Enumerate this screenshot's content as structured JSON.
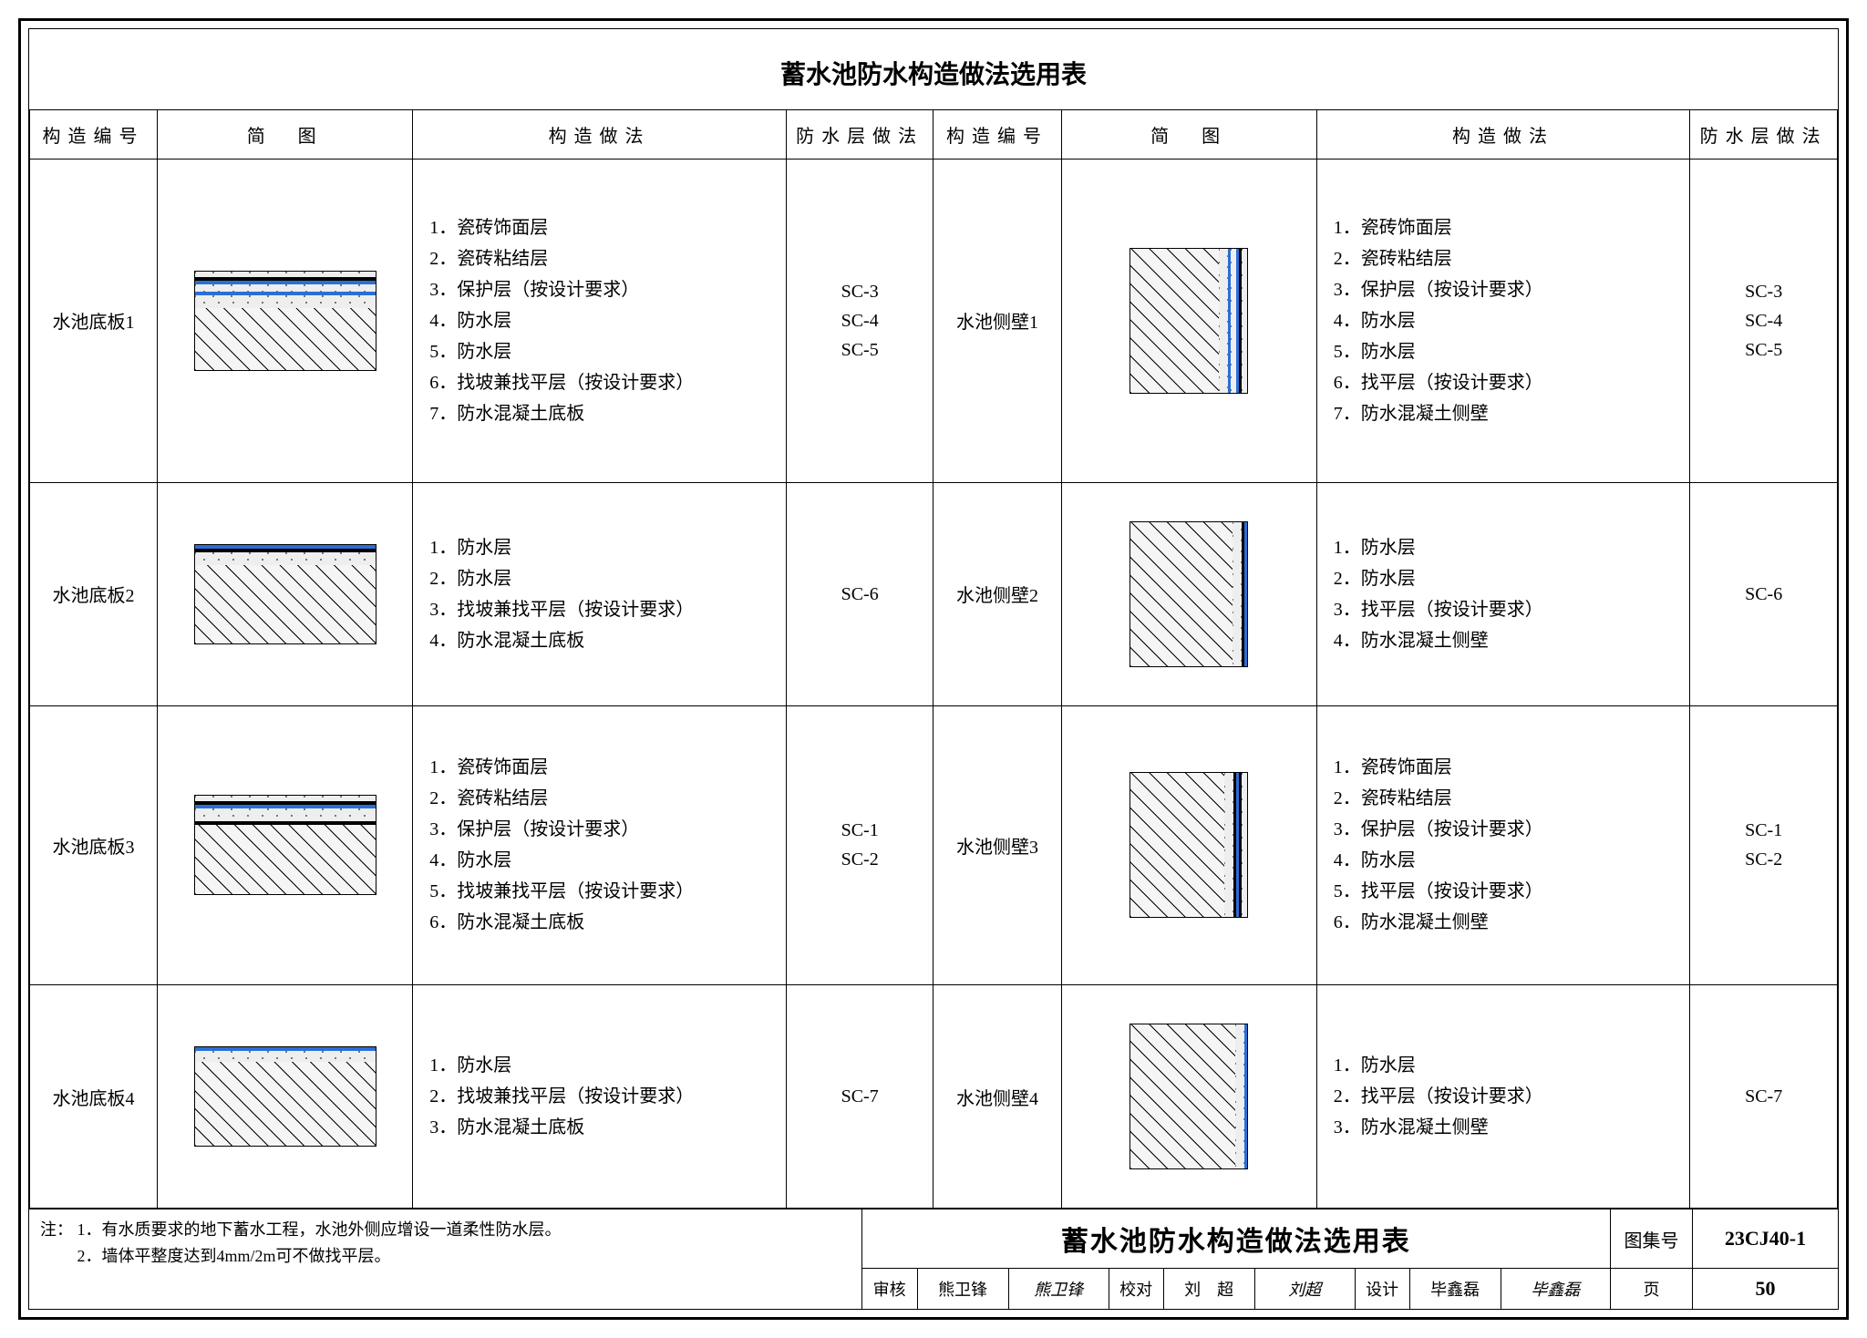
{
  "title": "蓄水池防水构造做法选用表",
  "columns": {
    "id": "构造编号",
    "diagram": "简　图",
    "construction": "构造做法",
    "method": "防水层做法"
  },
  "rows_left": [
    {
      "id": "水池底板1",
      "layers": [
        "1．瓷砖饰面层",
        "2．瓷砖粘结层",
        "3．保护层（按设计要求）",
        "4．防水层",
        "5．防水层",
        "6．找坡兼找平层（按设计要求）",
        "7．防水混凝土底板"
      ],
      "methods": [
        "SC-3",
        "SC-4",
        "SC-5"
      ],
      "diag_type": "h7"
    },
    {
      "id": "水池底板2",
      "layers": [
        "1．防水层",
        "2．防水层",
        "3．找坡兼找平层（按设计要求）",
        "4．防水混凝土底板"
      ],
      "methods": [
        "SC-6"
      ],
      "diag_type": "h4"
    },
    {
      "id": "水池底板3",
      "layers": [
        "1．瓷砖饰面层",
        "2．瓷砖粘结层",
        "3．保护层（按设计要求）",
        "4．防水层",
        "5．找坡兼找平层（按设计要求）",
        "6．防水混凝土底板"
      ],
      "methods": [
        "SC-1",
        "SC-2"
      ],
      "diag_type": "h6"
    },
    {
      "id": "水池底板4",
      "layers": [
        "1．防水层",
        "2．找坡兼找平层（按设计要求）",
        "3．防水混凝土底板"
      ],
      "methods": [
        "SC-7"
      ],
      "diag_type": "h3"
    }
  ],
  "rows_right": [
    {
      "id": "水池侧壁1",
      "layers": [
        "1．瓷砖饰面层",
        "2．瓷砖粘结层",
        "3．保护层（按设计要求）",
        "4．防水层",
        "5．防水层",
        "6．找平层（按设计要求）",
        "7．防水混凝土侧壁"
      ],
      "methods": [
        "SC-3",
        "SC-4",
        "SC-5"
      ],
      "diag_type": "v7"
    },
    {
      "id": "水池侧壁2",
      "layers": [
        "1．防水层",
        "2．防水层",
        "3．找平层（按设计要求）",
        "4．防水混凝土侧壁"
      ],
      "methods": [
        "SC-6"
      ],
      "diag_type": "v4"
    },
    {
      "id": "水池侧壁3",
      "layers": [
        "1．瓷砖饰面层",
        "2．瓷砖粘结层",
        "3．保护层（按设计要求）",
        "4．防水层",
        "5．找平层（按设计要求）",
        "6．防水混凝土侧壁"
      ],
      "methods": [
        "SC-1",
        "SC-2"
      ],
      "diag_type": "v6"
    },
    {
      "id": "水池侧壁4",
      "layers": [
        "1．防水层",
        "2．找平层（按设计要求）",
        "3．防水混凝土侧壁"
      ],
      "methods": [
        "SC-7"
      ],
      "diag_type": "v3"
    }
  ],
  "notes_label": "注：",
  "notes": [
    "1．有水质要求的地下蓄水工程，水池外侧应增设一道柔性防水层。",
    "2．墙体平整度达到4mm/2m可不做找平层。"
  ],
  "titleblock": {
    "title": "蓄水池防水构造做法选用表",
    "album_label": "图集号",
    "album_no": "23CJ40-1",
    "review_label": "审核",
    "review_name": "熊卫锋",
    "review_sig": "熊卫锋",
    "check_label": "校对",
    "check_name": "刘　超",
    "check_sig": "刘超",
    "design_label": "设计",
    "design_name": "毕鑫磊",
    "design_sig": "毕鑫磊",
    "page_label": "页",
    "page_no": "50"
  },
  "colors": {
    "blue": "#2a6fd6",
    "black": "#000000",
    "bg": "#ffffff"
  }
}
